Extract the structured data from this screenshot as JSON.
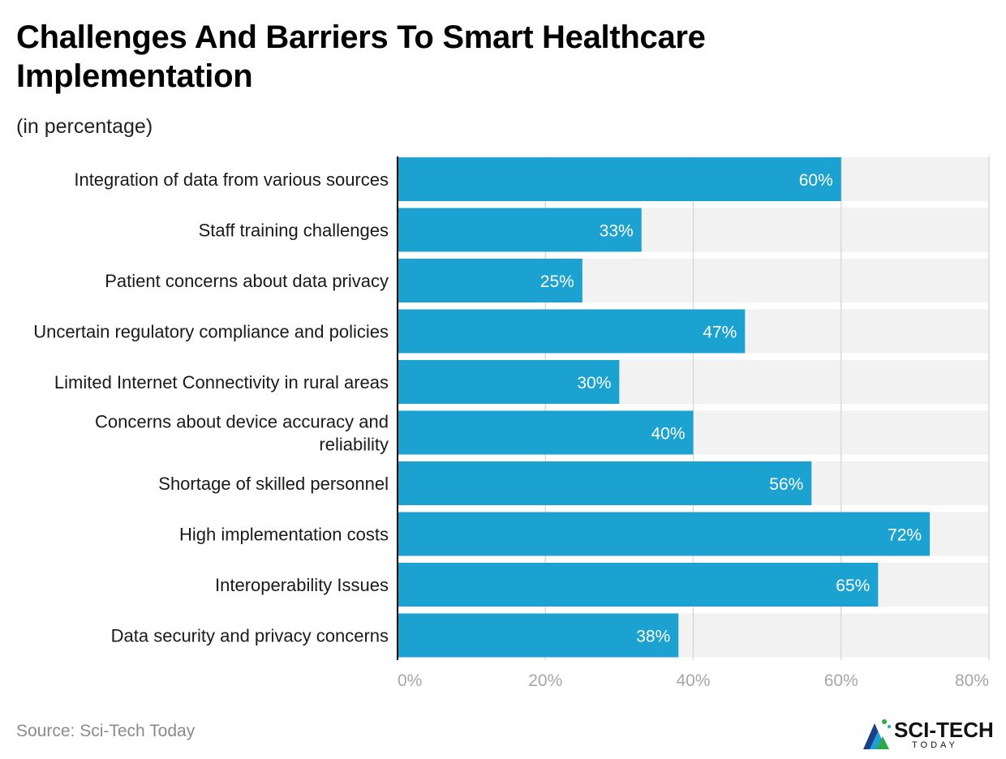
{
  "chart_data": {
    "type": "bar",
    "orientation": "horizontal",
    "title": "Challenges And Barriers To Smart Healthcare Implementation",
    "subtitle": "(in percentage)",
    "categories": [
      "Integration of data from various sources",
      "Staff training challenges",
      "Patient concerns about data privacy",
      "Uncertain regulatory compliance and policies",
      "Limited Internet Connectivity in rural areas",
      "Concerns about device accuracy and reliability",
      "Shortage of skilled personnel",
      "High implementation costs",
      "Interoperability Issues",
      "Data security and privacy concerns"
    ],
    "values": [
      60,
      33,
      25,
      47,
      30,
      40,
      56,
      72,
      65,
      38
    ],
    "value_labels": [
      "60%",
      "33%",
      "25%",
      "47%",
      "30%",
      "40%",
      "56%",
      "72%",
      "65%",
      "38%"
    ],
    "xlim": [
      0,
      80
    ],
    "x_ticks": [
      0,
      20,
      40,
      60,
      80
    ],
    "x_tick_labels": [
      "0%",
      "20%",
      "40%",
      "60%",
      "80%"
    ],
    "grid": true,
    "xlabel": "",
    "ylabel": ""
  },
  "colors": {
    "bar": "#1ba2d0",
    "track": "#f2f2f2",
    "grid": "#d9d9d9",
    "axis": "#000000",
    "tick_label": "#a6a6a6",
    "value_label": "#ffffff",
    "category_label": "#1a1a1a"
  },
  "source": "Source: Sci-Tech Today",
  "logo": {
    "name": "SCI-TECH",
    "tagline": "TODAY"
  }
}
